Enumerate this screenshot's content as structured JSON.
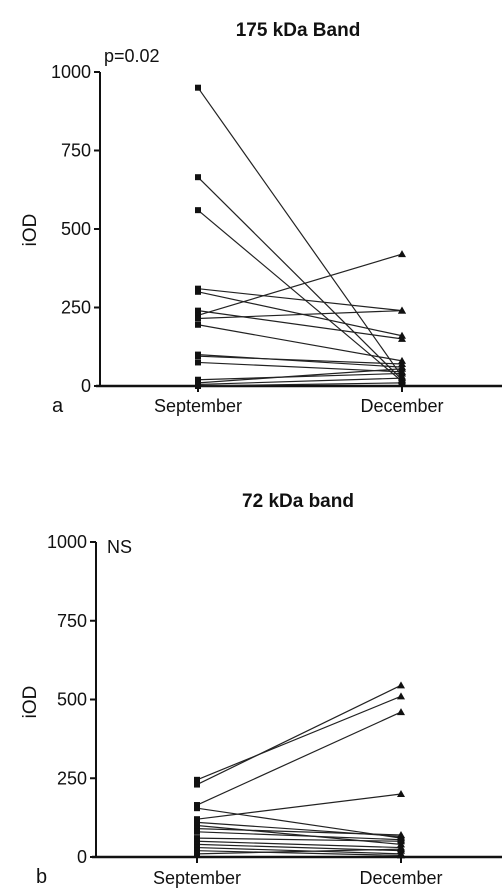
{
  "chart_data": [
    {
      "type": "line",
      "panel_label": "a",
      "title": "175 kDa Band",
      "annotation": "p=0.02",
      "ylabel": "iOD",
      "xlabel": "",
      "categories": [
        "September",
        "December"
      ],
      "ylim": [
        0,
        1000
      ],
      "yticks": [
        0,
        250,
        500,
        750,
        1000
      ],
      "grid": false,
      "legend": "none",
      "markers": [
        "square",
        "triangle"
      ],
      "pairs": [
        [
          950,
          30
        ],
        [
          665,
          20
        ],
        [
          560,
          15
        ],
        [
          310,
          240
        ],
        [
          300,
          160
        ],
        [
          240,
          150
        ],
        [
          225,
          420
        ],
        [
          215,
          240
        ],
        [
          195,
          80
        ],
        [
          100,
          60
        ],
        [
          95,
          70
        ],
        [
          75,
          45
        ],
        [
          20,
          40
        ],
        [
          10,
          55
        ],
        [
          5,
          25
        ],
        [
          0,
          10
        ]
      ]
    },
    {
      "type": "line",
      "panel_label": "b",
      "title": "72 kDa band",
      "annotation": "NS",
      "ylabel": "iOD",
      "xlabel": "",
      "categories": [
        "September",
        "December"
      ],
      "ylim": [
        0,
        1000
      ],
      "yticks": [
        0,
        250,
        500,
        750,
        1000
      ],
      "grid": false,
      "legend": "none",
      "markers": [
        "square",
        "triangle"
      ],
      "pairs": [
        [
          245,
          510
        ],
        [
          230,
          545
        ],
        [
          165,
          460
        ],
        [
          155,
          60
        ],
        [
          120,
          200
        ],
        [
          110,
          65
        ],
        [
          100,
          40
        ],
        [
          90,
          70
        ],
        [
          80,
          55
        ],
        [
          60,
          50
        ],
        [
          50,
          30
        ],
        [
          40,
          20
        ],
        [
          30,
          10
        ],
        [
          20,
          5
        ],
        [
          10,
          25
        ]
      ]
    }
  ]
}
